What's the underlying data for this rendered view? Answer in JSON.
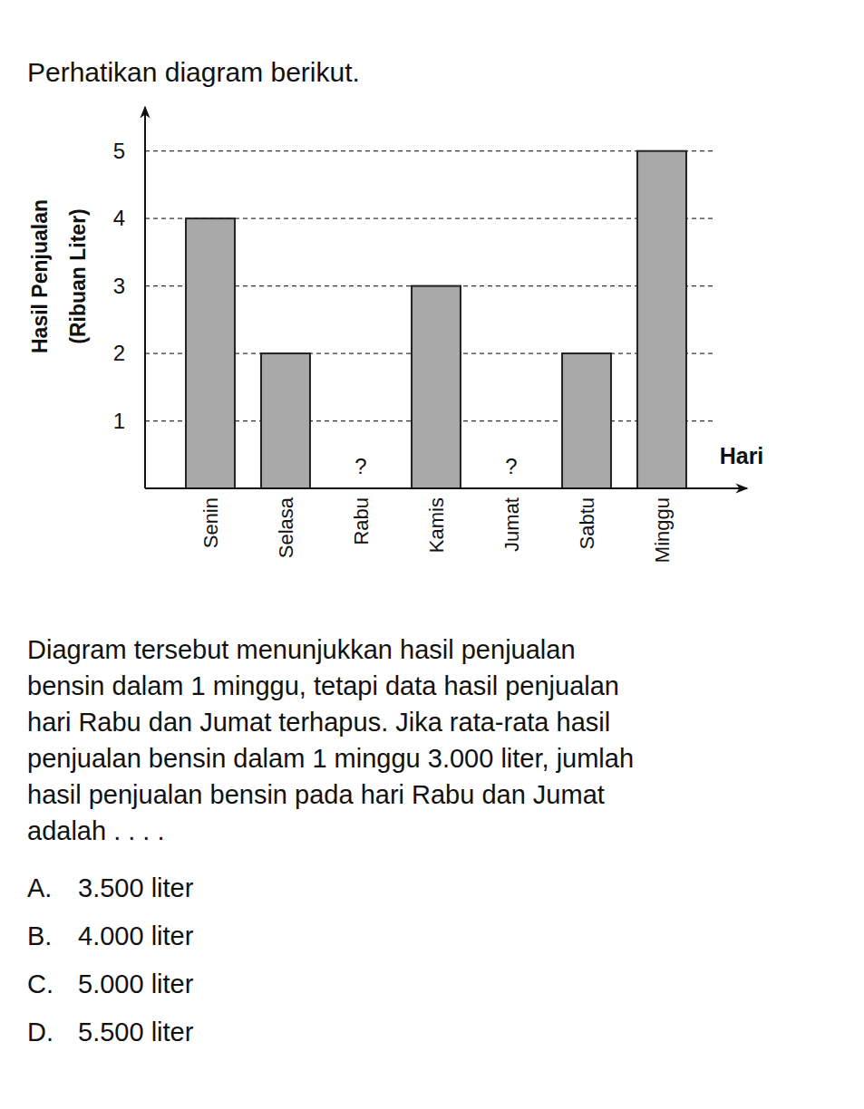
{
  "title": "Perhatikan diagram berikut.",
  "chart_data": {
    "type": "bar",
    "categories": [
      "Senin",
      "Selasa",
      "Rabu",
      "Kamis",
      "Jumat",
      "Sabtu",
      "Minggu"
    ],
    "values": [
      4,
      2,
      null,
      3,
      null,
      2,
      5
    ],
    "color": "#a9a9a9",
    "x_label": "Hari",
    "y_label": [
      "Hasil Penjualan",
      "(Ribuan Liter)"
    ],
    "ylim": [
      0,
      5.6
    ],
    "yticks": [
      1,
      2,
      3,
      4,
      5
    ],
    "grid": true,
    "annotations": [
      {
        "category": "Rabu",
        "text": "?"
      },
      {
        "category": "Jumat",
        "text": "?"
      }
    ]
  },
  "question": [
    "Diagram tersebut menunjukkan hasil penjualan",
    "bensin dalam 1 minggu, tetapi data hasil penjualan",
    "hari Rabu dan Jumat terhapus. Jika rata-rata hasil",
    "penjualan bensin dalam 1 minggu 3.000 liter, jumlah",
    "hasil penjualan bensin pada hari Rabu dan Jumat",
    "adalah . . . ."
  ],
  "options": [
    {
      "letter": "A.",
      "text": "3.500 liter"
    },
    {
      "letter": "B.",
      "text": "4.000 liter"
    },
    {
      "letter": "C.",
      "text": "5.000 liter"
    },
    {
      "letter": "D.",
      "text": "5.500 liter"
    }
  ]
}
